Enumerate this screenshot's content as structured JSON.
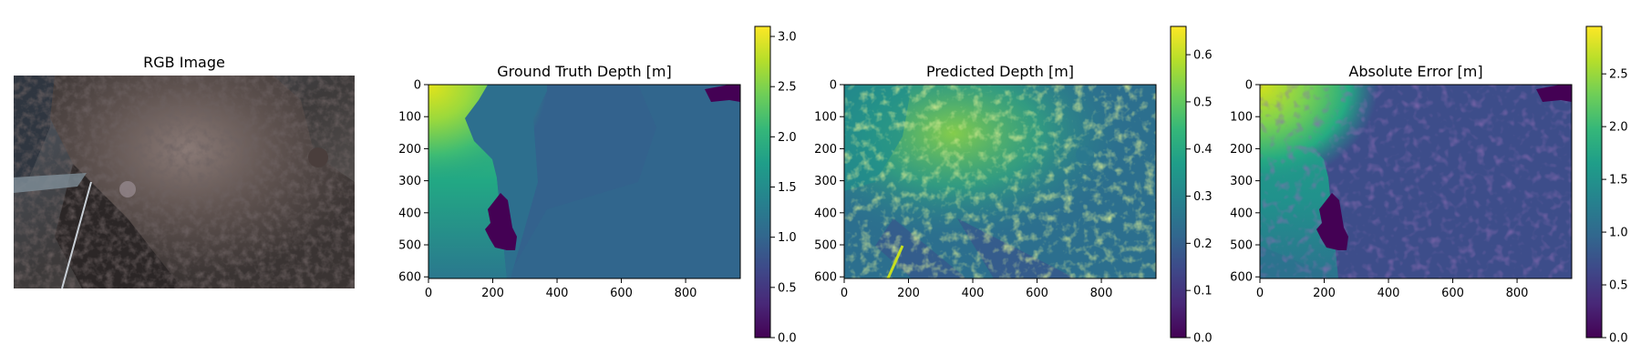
{
  "figure": {
    "panels": [
      {
        "title": "RGB Image"
      },
      {
        "title": "Ground Truth Depth [m]"
      },
      {
        "title": "Predicted Depth [m]"
      },
      {
        "title": "Absolute Error [m]"
      }
    ]
  },
  "colormap": {
    "name": "viridis",
    "stops": [
      "#440154",
      "#482878",
      "#3e4989",
      "#31688e",
      "#26828e",
      "#1f9e89",
      "#35b779",
      "#6ece58",
      "#b5de2b",
      "#fde725"
    ]
  },
  "chart_data": [
    {
      "type": "heatmap",
      "title": "Ground Truth Depth [m]",
      "x_ticks": [
        0,
        200,
        400,
        600,
        800
      ],
      "y_ticks": [
        0,
        100,
        200,
        300,
        400,
        500,
        600
      ],
      "xlim": [
        0,
        970
      ],
      "ylim": [
        605,
        0
      ],
      "colorbar": {
        "range": [
          0,
          3.1
        ],
        "ticks": [
          "0.0",
          "0.5",
          "1.0",
          "1.5",
          "2.0",
          "2.5",
          "3.0"
        ]
      }
    },
    {
      "type": "heatmap",
      "title": "Predicted Depth [m]",
      "x_ticks": [
        0,
        200,
        400,
        600,
        800
      ],
      "y_ticks": [
        0,
        100,
        200,
        300,
        400,
        500,
        600
      ],
      "xlim": [
        0,
        970
      ],
      "ylim": [
        605,
        0
      ],
      "colorbar": {
        "range": [
          0,
          0.66
        ],
        "ticks": [
          "0.0",
          "0.1",
          "0.2",
          "0.3",
          "0.4",
          "0.5",
          "0.6"
        ]
      }
    },
    {
      "type": "heatmap",
      "title": "Absolute Error [m]",
      "x_ticks": [
        0,
        200,
        400,
        600,
        800
      ],
      "y_ticks": [
        0,
        100,
        200,
        300,
        400,
        500,
        600
      ],
      "xlim": [
        0,
        970
      ],
      "ylim": [
        605,
        0
      ],
      "colorbar": {
        "range": [
          0,
          2.95
        ],
        "ticks": [
          "0.0",
          "0.5",
          "1.0",
          "1.5",
          "2.0",
          "2.5"
        ]
      }
    }
  ]
}
